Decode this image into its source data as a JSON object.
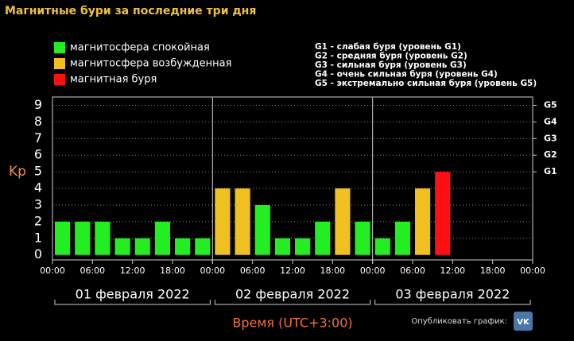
{
  "chart_data": {
    "type": "bar",
    "title": "Магнитные бури за последние три дня",
    "y_label": "Kp",
    "x_label": "Время (UTC+3:00)",
    "x": [
      0,
      3,
      6,
      9,
      12,
      15,
      18,
      21,
      24,
      27,
      30,
      33,
      36,
      39,
      42,
      45,
      48,
      51,
      54,
      57,
      60,
      63,
      66,
      69
    ],
    "bar_hours": 3,
    "series": [
      {
        "name": "магнитосфера спокойная",
        "color": "#22ee22",
        "values": [
          2,
          2,
          2,
          1,
          1,
          2,
          1,
          1,
          null,
          null,
          3,
          1,
          1,
          2,
          null,
          2,
          1,
          2,
          null,
          null,
          null,
          null,
          null,
          null
        ]
      },
      {
        "name": "магнитосфера возбужденная",
        "color": "#f0c020",
        "values": [
          null,
          null,
          null,
          null,
          null,
          null,
          null,
          null,
          4,
          4,
          null,
          null,
          null,
          null,
          4,
          null,
          null,
          null,
          4,
          null,
          null,
          null,
          null,
          null
        ]
      },
      {
        "name": "магнитная буря",
        "color": "#ff1010",
        "values": [
          null,
          null,
          null,
          null,
          null,
          null,
          null,
          null,
          null,
          null,
          null,
          null,
          null,
          null,
          null,
          null,
          null,
          null,
          null,
          5,
          null,
          null,
          null,
          null
        ]
      }
    ],
    "xlim": [
      0,
      72
    ],
    "xticks": [
      {
        "value": 0,
        "label": "00:00"
      },
      {
        "value": 6,
        "label": "06:00"
      },
      {
        "value": 12,
        "label": "12:00"
      },
      {
        "value": 18,
        "label": "18:00"
      },
      {
        "value": 24,
        "label": "00:00"
      },
      {
        "value": 30,
        "label": "06:00"
      },
      {
        "value": 36,
        "label": "12:00"
      },
      {
        "value": 42,
        "label": "18:00"
      },
      {
        "value": 48,
        "label": "00:00"
      },
      {
        "value": 54,
        "label": "06:00"
      },
      {
        "value": 60,
        "label": "12:00"
      },
      {
        "value": 66,
        "label": "18:00"
      },
      {
        "value": 72,
        "label": "00:00"
      }
    ],
    "day_labels": [
      "01 февраля 2022",
      "02 февраля 2022",
      "03 февраля 2022"
    ],
    "ylim": [
      -0.3,
      9.5
    ],
    "yticks": [
      0,
      1,
      2,
      3,
      4,
      5,
      6,
      7,
      8,
      9
    ],
    "y2ticks": [
      {
        "value": 5,
        "label": "G1"
      },
      {
        "value": 6,
        "label": "G2"
      },
      {
        "value": 7,
        "label": "G3"
      },
      {
        "value": 8,
        "label": "G4"
      },
      {
        "value": 9,
        "label": "G5"
      }
    ],
    "g_legend": [
      "G1 - слабая буря (уровень G1)",
      "G2 - средняя буря (уровень G2)",
      "G3 - сильная буря (уровень G3)",
      "G4 - очень сильная буря (уровень G4)",
      "G5 - экстремально сильная буря (уровень G5)"
    ],
    "grid": true,
    "share_text": "Опубликовать график:",
    "share_icon": "VK"
  }
}
